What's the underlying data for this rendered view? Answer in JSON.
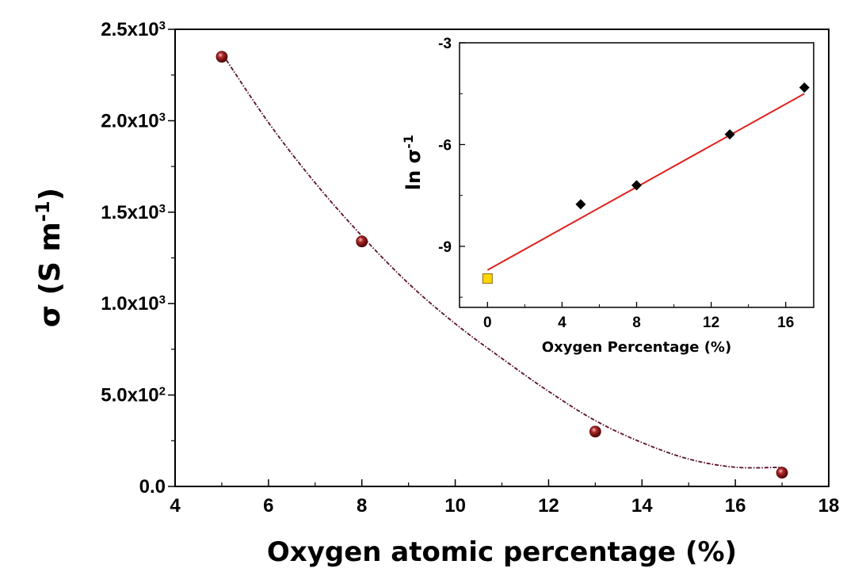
{
  "colors": {
    "marker": "#8b1a1a",
    "trend_curve": "#5a0f2a",
    "inset_marker": "#000000",
    "inset_special_marker": "#ffd700",
    "fit_line": "#e0221e"
  },
  "chart_data": [
    {
      "type": "scatter",
      "title": "",
      "xlabel": "Oxygen atomic percentage (%)",
      "ylabel": "σ (S m⁻¹)",
      "ylabel_parts": {
        "base": "σ (S m",
        "exp": "-1",
        "close": ")"
      },
      "xlim": [
        4,
        18
      ],
      "ylim": [
        0,
        2500
      ],
      "x_ticks": [
        4,
        6,
        8,
        10,
        12,
        14,
        16,
        18
      ],
      "x_tick_labels": [
        "4",
        "6",
        "8",
        "10",
        "12",
        "14",
        "16",
        "18"
      ],
      "y_ticks": [
        0,
        500,
        1000,
        1500,
        2000,
        2500
      ],
      "y_tick_labels": [
        {
          "mant": "0.0",
          "exp": ""
        },
        {
          "mant": "5.0x10",
          "exp": "2"
        },
        {
          "mant": "1.0x10",
          "exp": "3"
        },
        {
          "mant": "1.5x10",
          "exp": "3"
        },
        {
          "mant": "2.0x10",
          "exp": "3"
        },
        {
          "mant": "2.5x10",
          "exp": "3"
        }
      ],
      "grid": false,
      "series": [
        {
          "marker": "sphere",
          "x": [
            5,
            8,
            13,
            17
          ],
          "y": [
            2350,
            1340,
            300,
            75
          ]
        },
        {
          "style": "dash-dot curve",
          "x": [
            5,
            6,
            7,
            8,
            9,
            10,
            11,
            12,
            13,
            14,
            15,
            16,
            17
          ],
          "y": [
            2370,
            1990,
            1660,
            1370,
            1110,
            890,
            700,
            520,
            360,
            240,
            150,
            105,
            105
          ]
        }
      ]
    },
    {
      "type": "scatter",
      "title": "",
      "xlabel": "Oxygen Percentage (%)",
      "ylabel": "ln σ⁻¹",
      "ylabel_parts": {
        "base": "ln σ",
        "exp": "-1"
      },
      "xlim": [
        -1.5,
        17.5
      ],
      "ylim": [
        -10.8,
        -3
      ],
      "x_ticks": [
        0,
        4,
        8,
        12,
        16
      ],
      "x_tick_labels": [
        "0",
        "4",
        "8",
        "12",
        "16"
      ],
      "y_ticks": [
        -9,
        -6,
        -3
      ],
      "y_tick_labels": [
        "-9",
        "-6",
        "-3"
      ],
      "grid": false,
      "series": [
        {
          "marker": "diamond",
          "x": [
            5,
            8,
            13,
            17
          ],
          "y": [
            -7.76,
            -7.2,
            -5.7,
            -4.32
          ]
        },
        {
          "marker": "square",
          "x": [
            0
          ],
          "y": [
            -9.95
          ]
        },
        {
          "style": "linear fit",
          "x": [
            0,
            17
          ],
          "y": [
            -9.7,
            -4.5
          ]
        }
      ]
    }
  ]
}
